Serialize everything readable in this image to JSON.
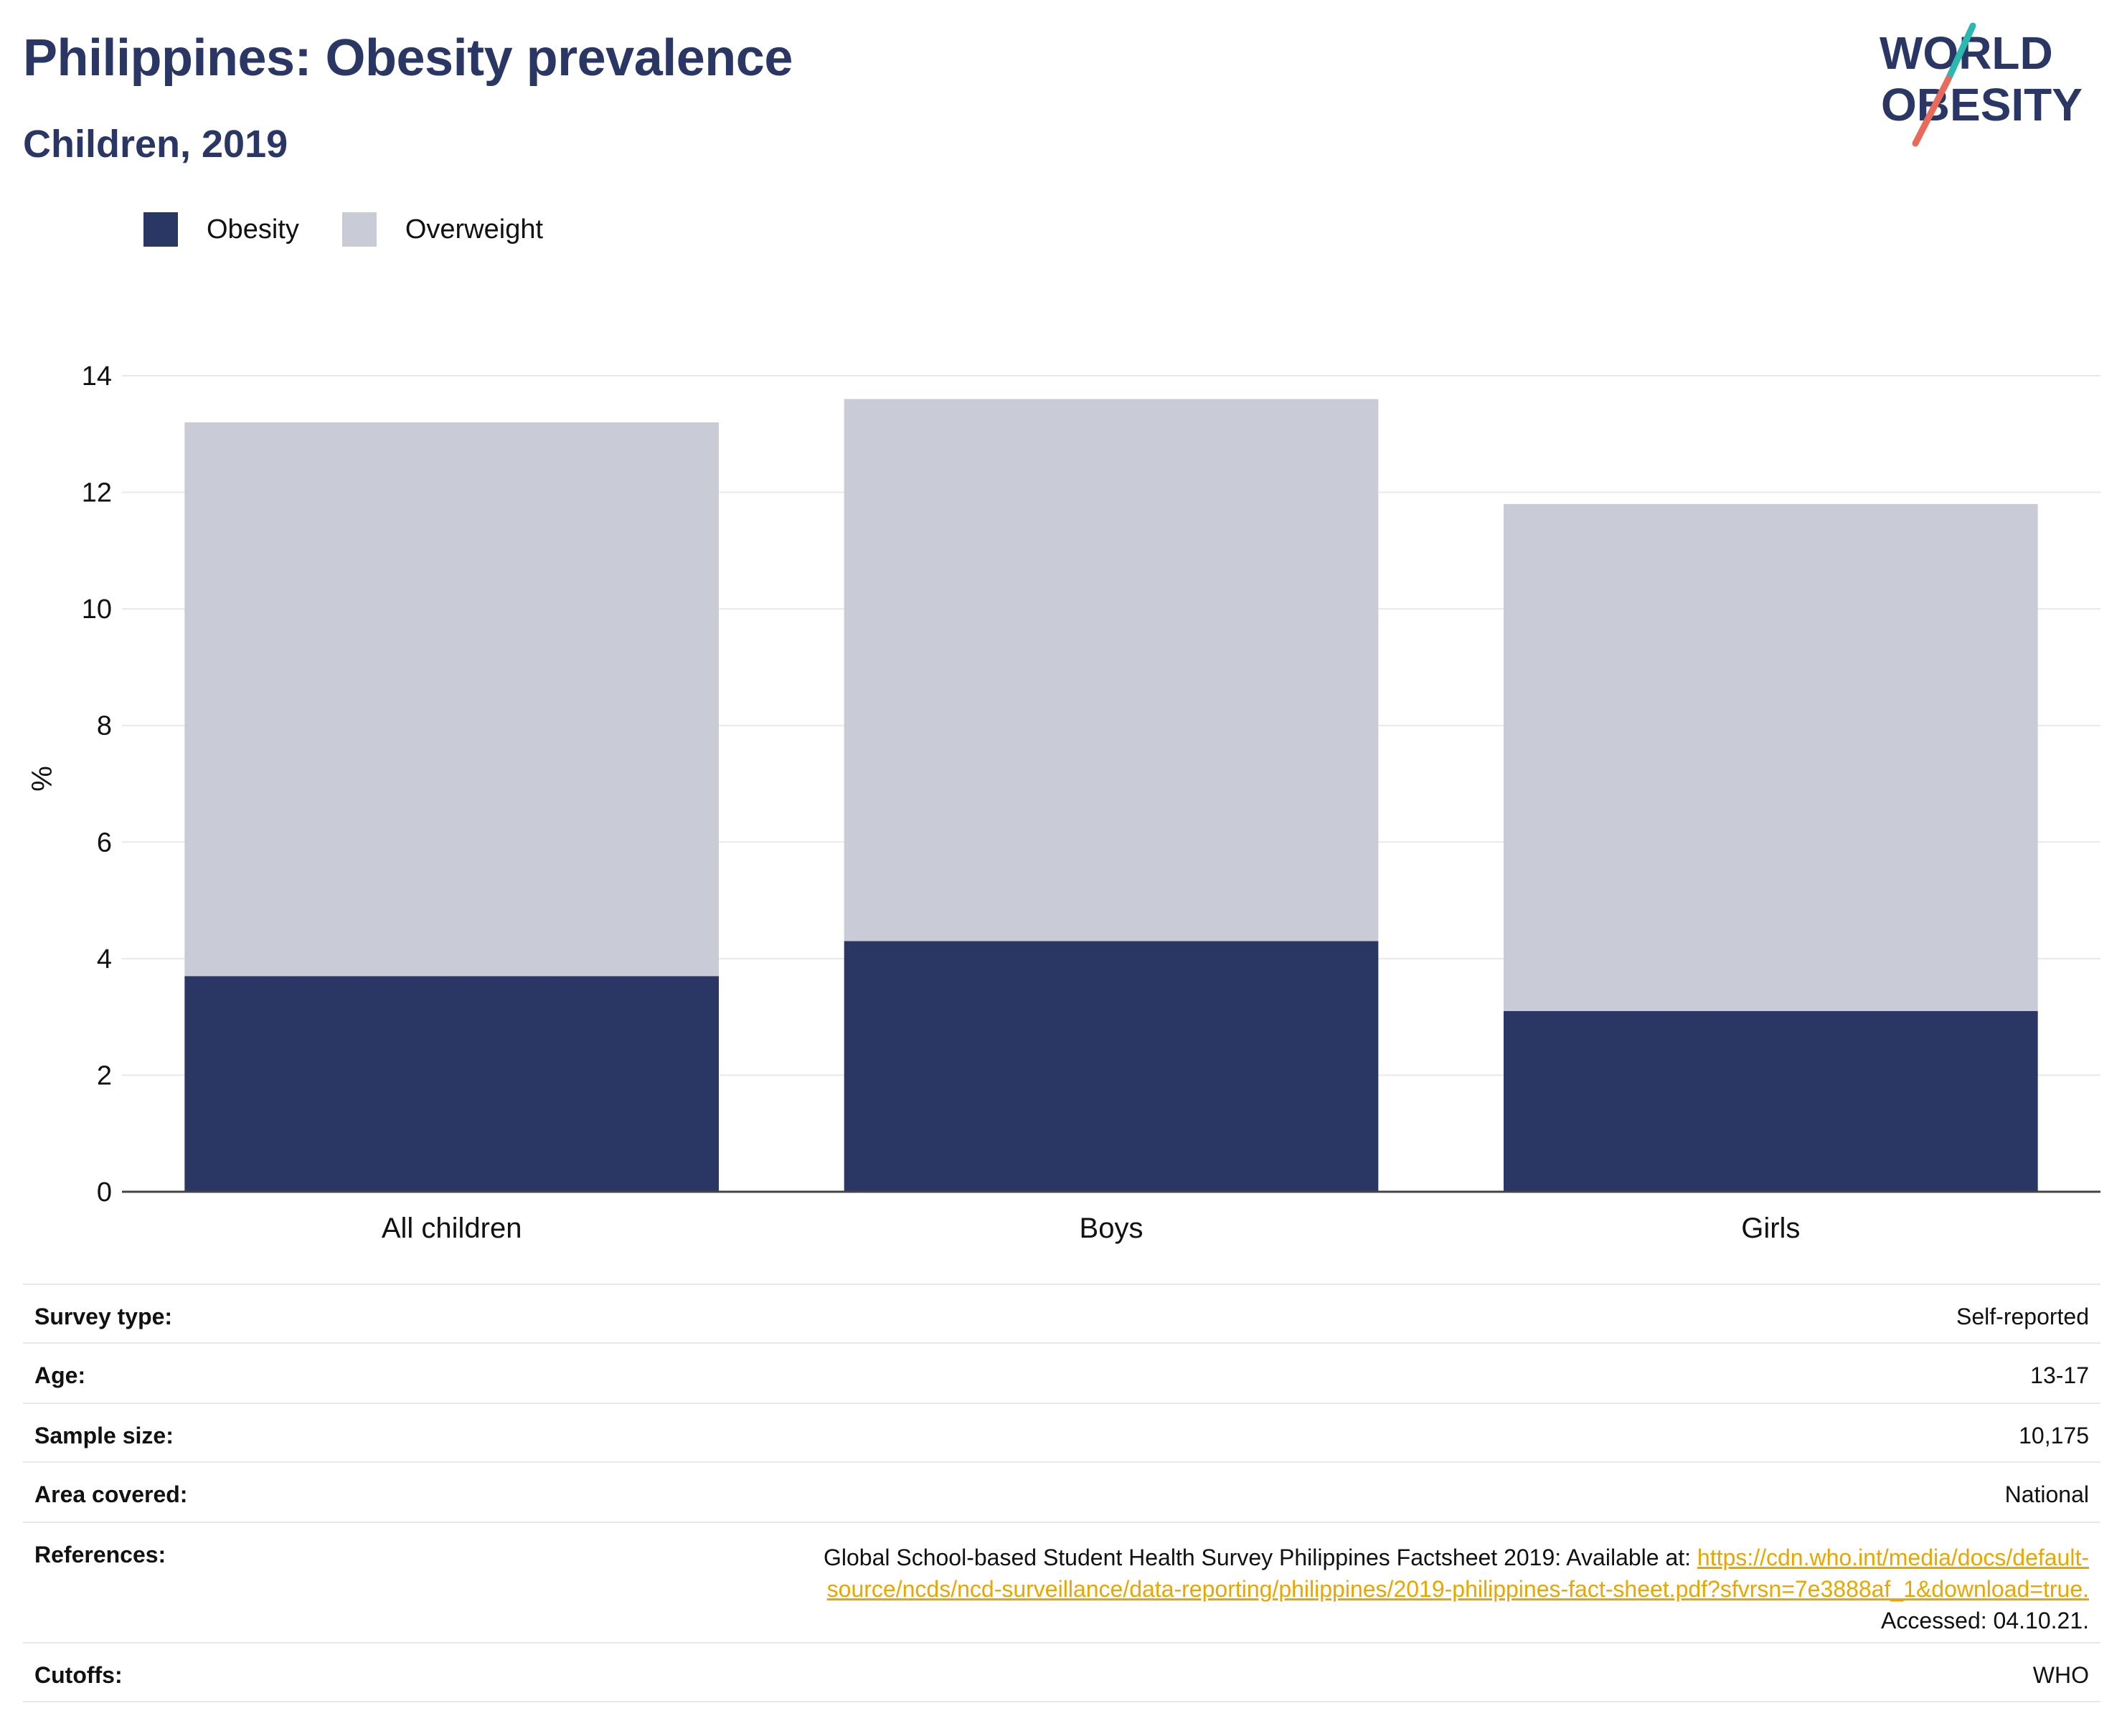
{
  "header": {
    "title": "Philippines: Obesity prevalence",
    "subtitle": "Children, 2019",
    "logo_line1": "WORLD",
    "logo_line2": "OBESITY"
  },
  "colors": {
    "obesity": "#2a3765",
    "overweight": "#c9cbd7",
    "grid": "#e8e9ee",
    "axis": "#444444",
    "link": "#e8a700",
    "logo_teal": "#2bb8b0",
    "logo_red": "#e86a5a",
    "logo_navy": "#2a3765"
  },
  "chart_data": {
    "type": "bar",
    "stacked": true,
    "categories": [
      "All children",
      "Boys",
      "Girls"
    ],
    "series": [
      {
        "name": "Obesity",
        "values": [
          3.7,
          4.3,
          3.1
        ],
        "color": "#2a3765"
      },
      {
        "name": "Overweight",
        "values": [
          9.5,
          9.3,
          8.7
        ],
        "color": "#c9cbd7"
      }
    ],
    "ylabel": "%",
    "ylim": [
      0,
      14
    ],
    "yticks": [
      "0",
      "2",
      "4",
      "6",
      "8",
      "10",
      "12",
      "14"
    ],
    "grid": true,
    "legend": "top-left"
  },
  "metadata": [
    {
      "label": "Survey type:",
      "value": "Self-reported"
    },
    {
      "label": "Age:",
      "value": "13-17"
    },
    {
      "label": "Sample size:",
      "value": "10,175"
    },
    {
      "label": "Area covered:",
      "value": "National"
    },
    {
      "label": "Cutoffs:",
      "value": "WHO"
    }
  ],
  "references": {
    "label": "References:",
    "text_before": "Global School-based Student Health Survey Philippines Factsheet 2019: Available at: ",
    "link_line1": "https://cdn.who.int/media/docs/default-",
    "link_line2": "source/ncds/ncd-surveillance/data-reporting/philippines/2019-philippines-fact-sheet.pdf?sfvrsn=7e3888af_1&download=true.",
    "text_after": "Accessed: 04.10.21."
  }
}
